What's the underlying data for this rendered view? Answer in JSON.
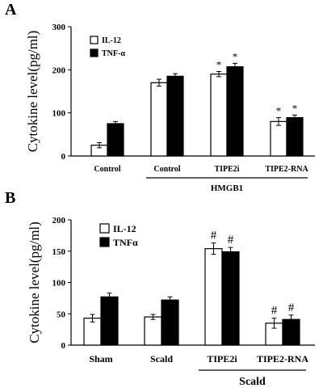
{
  "chart_data": [
    {
      "panel": "A",
      "type": "bar",
      "categories": [
        "Control",
        "Control",
        "TIPE2i",
        "TIPE2-RNA"
      ],
      "group_label": "HMGB1",
      "group_covers": [
        1,
        2,
        3
      ],
      "ylabel": "Cytokine level(pg/ml)",
      "ylim": [
        0,
        300
      ],
      "yticks": [
        "0",
        "100",
        "200",
        "300"
      ],
      "legend_position": "top-left",
      "series": [
        {
          "name": "IL-12",
          "fill": "#ffffff",
          "values": [
            25,
            170,
            190,
            80
          ],
          "errors": [
            6,
            8,
            6,
            9
          ],
          "annotations": [
            "",
            "",
            "*",
            "*"
          ]
        },
        {
          "name": "TNF-α",
          "fill": "#000000",
          "values": [
            75,
            185,
            207,
            89
          ],
          "errors": [
            5,
            6,
            8,
            6
          ],
          "annotations": [
            "",
            "",
            "*",
            "*"
          ]
        }
      ]
    },
    {
      "panel": "B",
      "type": "bar",
      "categories": [
        "Sham",
        "Scald",
        "TIPE2i",
        "TIPE2-RNA"
      ],
      "group_label": "Scald",
      "group_covers": [
        2,
        3
      ],
      "ylabel": "Cytokine level(pg/ml)",
      "ylim": [
        0,
        200
      ],
      "yticks": [
        "0",
        "50",
        "100",
        "150",
        "200"
      ],
      "legend_position": "top-left",
      "series": [
        {
          "name": "IL-12",
          "fill": "#ffffff",
          "values": [
            43,
            45,
            154,
            35
          ],
          "errors": [
            6,
            4,
            9,
            8
          ],
          "annotations": [
            "",
            "",
            "#",
            "#"
          ]
        },
        {
          "name": "TNFα",
          "fill": "#000000",
          "values": [
            77,
            72,
            149,
            41
          ],
          "errors": [
            6,
            5,
            7,
            7
          ],
          "annotations": [
            "",
            "",
            "#",
            "#"
          ]
        }
      ]
    }
  ]
}
